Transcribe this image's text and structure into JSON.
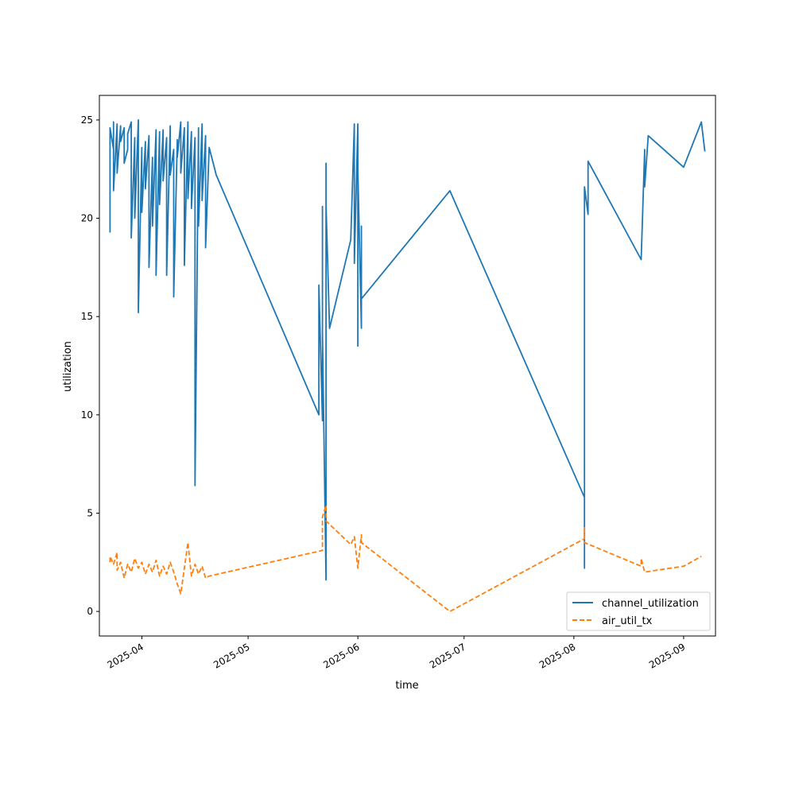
{
  "chart_data": {
    "type": "line",
    "xlabel": "time",
    "ylabel": "utilization",
    "x_type": "date",
    "xlim": [
      "2025-03-20",
      "2025-09-10"
    ],
    "ylim": [
      -1.25,
      26.25
    ],
    "y_ticks": [
      0,
      5,
      10,
      15,
      20,
      25
    ],
    "x_ticks": [
      {
        "date": "2025-04-01",
        "label": "2025-04"
      },
      {
        "date": "2025-05-01",
        "label": "2025-05"
      },
      {
        "date": "2025-06-01",
        "label": "2025-06"
      },
      {
        "date": "2025-07-01",
        "label": "2025-07"
      },
      {
        "date": "2025-08-01",
        "label": "2025-08"
      },
      {
        "date": "2025-09-01",
        "label": "2025-09"
      }
    ],
    "legend_position": "lower-right",
    "grid": false,
    "series": [
      {
        "name": "channel_utilization",
        "color": "#1f77b4",
        "style": "solid",
        "points": [
          [
            "2025-03-23",
            24.2
          ],
          [
            "2025-03-23",
            19.3
          ],
          [
            "2025-03-23",
            24.6
          ],
          [
            "2025-03-24",
            23.5
          ],
          [
            "2025-03-24",
            24.9
          ],
          [
            "2025-03-24",
            21.4
          ],
          [
            "2025-03-25",
            24.8
          ],
          [
            "2025-03-25",
            22.3
          ],
          [
            "2025-03-26",
            24.7
          ],
          [
            "2025-03-26",
            23.9
          ],
          [
            "2025-03-27",
            24.6
          ],
          [
            "2025-03-27",
            22.8
          ],
          [
            "2025-03-28",
            23.5
          ],
          [
            "2025-03-28",
            24.3
          ],
          [
            "2025-03-29",
            24.9
          ],
          [
            "2025-03-29",
            19.0
          ],
          [
            "2025-03-30",
            24.1
          ],
          [
            "2025-03-30",
            20.0
          ],
          [
            "2025-03-31",
            25.0
          ],
          [
            "2025-03-31",
            15.2
          ],
          [
            "2025-04-01",
            23.6
          ],
          [
            "2025-04-01",
            20.3
          ],
          [
            "2025-04-02",
            23.9
          ],
          [
            "2025-04-02",
            21.5
          ],
          [
            "2025-04-03",
            24.2
          ],
          [
            "2025-04-03",
            17.5
          ],
          [
            "2025-04-04",
            23.1
          ],
          [
            "2025-04-04",
            19.6
          ],
          [
            "2025-04-05",
            24.5
          ],
          [
            "2025-04-05",
            17.1
          ],
          [
            "2025-04-06",
            24.4
          ],
          [
            "2025-04-06",
            20.7
          ],
          [
            "2025-04-07",
            24.5
          ],
          [
            "2025-04-07",
            21.9
          ],
          [
            "2025-04-08",
            24.1
          ],
          [
            "2025-04-08",
            17.1
          ],
          [
            "2025-04-09",
            24.7
          ],
          [
            "2025-04-09",
            22.2
          ],
          [
            "2025-04-10",
            23.5
          ],
          [
            "2025-04-10",
            16.0
          ],
          [
            "2025-04-11",
            24.0
          ],
          [
            "2025-04-11",
            23.1
          ],
          [
            "2025-04-12",
            24.9
          ],
          [
            "2025-04-12",
            22.3
          ],
          [
            "2025-04-13",
            24.6
          ],
          [
            "2025-04-13",
            17.6
          ],
          [
            "2025-04-14",
            24.9
          ],
          [
            "2025-04-14",
            21.0
          ],
          [
            "2025-04-15",
            24.4
          ],
          [
            "2025-04-15",
            20.5
          ],
          [
            "2025-04-16",
            24.1
          ],
          [
            "2025-04-16",
            14.8
          ],
          [
            "2025-04-16",
            6.4
          ],
          [
            "2025-04-17",
            24.6
          ],
          [
            "2025-04-17",
            19.6
          ],
          [
            "2025-04-18",
            24.8
          ],
          [
            "2025-04-18",
            20.9
          ],
          [
            "2025-04-19",
            24.2
          ],
          [
            "2025-04-19",
            18.5
          ],
          [
            "2025-04-20",
            23.6
          ],
          [
            "2025-04-22",
            22.2
          ],
          [
            "2025-05-21",
            10.0
          ],
          [
            "2025-05-21",
            16.6
          ],
          [
            "2025-05-22",
            9.7
          ],
          [
            "2025-05-22",
            20.6
          ],
          [
            "2025-05-22",
            14.2
          ],
          [
            "2025-05-23",
            1.6
          ],
          [
            "2025-05-23",
            22.8
          ],
          [
            "2025-05-23",
            12.5
          ],
          [
            "2025-05-23",
            20.7
          ],
          [
            "2025-05-24",
            14.4
          ],
          [
            "2025-05-30",
            18.9
          ],
          [
            "2025-05-31",
            24.8
          ],
          [
            "2025-05-31",
            17.7
          ],
          [
            "2025-06-01",
            24.8
          ],
          [
            "2025-06-01",
            13.5
          ],
          [
            "2025-06-01",
            22.5
          ],
          [
            "2025-06-02",
            14.4
          ],
          [
            "2025-06-02",
            19.6
          ],
          [
            "2025-06-02",
            15.9
          ],
          [
            "2025-06-27",
            21.4
          ],
          [
            "2025-08-04",
            5.8
          ],
          [
            "2025-08-04",
            2.2
          ],
          [
            "2025-08-04",
            21.6
          ],
          [
            "2025-08-05",
            20.2
          ],
          [
            "2025-08-05",
            22.9
          ],
          [
            "2025-08-20",
            17.9
          ],
          [
            "2025-08-21",
            23.5
          ],
          [
            "2025-08-21",
            21.6
          ],
          [
            "2025-08-22",
            24.2
          ],
          [
            "2025-09-01",
            22.6
          ],
          [
            "2025-09-06",
            24.9
          ],
          [
            "2025-09-07",
            23.4
          ]
        ]
      },
      {
        "name": "air_util_tx",
        "color": "#ff7f0e",
        "style": "dashed",
        "points": [
          [
            "2025-03-23",
            2.5
          ],
          [
            "2025-03-23",
            2.8
          ],
          [
            "2025-03-24",
            2.4
          ],
          [
            "2025-03-25",
            3.0
          ],
          [
            "2025-03-25",
            2.1
          ],
          [
            "2025-03-26",
            2.5
          ],
          [
            "2025-03-27",
            1.7
          ],
          [
            "2025-03-28",
            2.4
          ],
          [
            "2025-03-29",
            2.0
          ],
          [
            "2025-03-30",
            2.7
          ],
          [
            "2025-03-31",
            2.2
          ],
          [
            "2025-04-01",
            2.5
          ],
          [
            "2025-04-02",
            1.9
          ],
          [
            "2025-04-03",
            2.4
          ],
          [
            "2025-04-04",
            2.0
          ],
          [
            "2025-04-05",
            2.6
          ],
          [
            "2025-04-06",
            1.8
          ],
          [
            "2025-04-07",
            2.3
          ],
          [
            "2025-04-08",
            1.9
          ],
          [
            "2025-04-09",
            2.5
          ],
          [
            "2025-04-10",
            2.0
          ],
          [
            "2025-04-11",
            1.4
          ],
          [
            "2025-04-12",
            0.9
          ],
          [
            "2025-04-13",
            2.2
          ],
          [
            "2025-04-14",
            3.5
          ],
          [
            "2025-04-15",
            1.8
          ],
          [
            "2025-04-16",
            2.4
          ],
          [
            "2025-04-17",
            1.9
          ],
          [
            "2025-04-18",
            2.3
          ],
          [
            "2025-04-19",
            1.7
          ],
          [
            "2025-04-20",
            1.8
          ],
          [
            "2025-05-22",
            3.1
          ],
          [
            "2025-05-22",
            4.8
          ],
          [
            "2025-05-23",
            5.4
          ],
          [
            "2025-05-23",
            4.6
          ],
          [
            "2025-05-30",
            3.4
          ],
          [
            "2025-05-31",
            3.8
          ],
          [
            "2025-06-01",
            2.2
          ],
          [
            "2025-06-02",
            3.9
          ],
          [
            "2025-06-02",
            3.5
          ],
          [
            "2025-06-27",
            0.0
          ],
          [
            "2025-08-04",
            3.7
          ],
          [
            "2025-08-04",
            4.3
          ],
          [
            "2025-08-04",
            3.5
          ],
          [
            "2025-08-20",
            2.3
          ],
          [
            "2025-08-20",
            2.7
          ],
          [
            "2025-08-21",
            2.0
          ],
          [
            "2025-09-01",
            2.3
          ],
          [
            "2025-09-06",
            2.8
          ]
        ]
      }
    ]
  }
}
